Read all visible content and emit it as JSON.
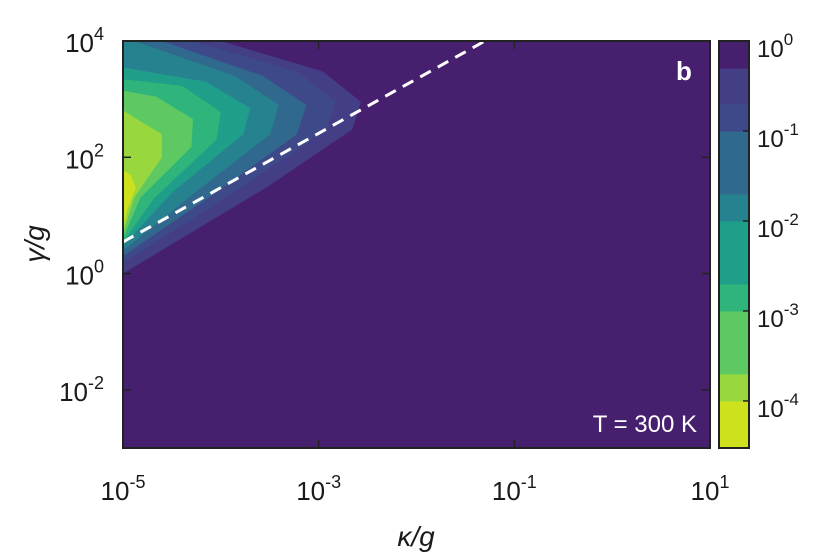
{
  "chart_data": {
    "type": "heatmap",
    "panel_label": "b",
    "annotation": "T = 300 K",
    "xlabel": "κ/g",
    "ylabel": "γ/g",
    "x_scale": "log",
    "y_scale": "log",
    "xlim": [
      1e-05,
      10
    ],
    "ylim": [
      0.001,
      10000
    ],
    "x_ticks": [
      {
        "base": "10",
        "exp": "-5",
        "value": 1e-05
      },
      {
        "base": "10",
        "exp": "-3",
        "value": 0.001
      },
      {
        "base": "10",
        "exp": "-1",
        "value": 0.1
      },
      {
        "base": "10",
        "exp": "1",
        "value": 10
      }
    ],
    "y_ticks": [
      {
        "base": "10",
        "exp": "4",
        "value": 10000
      },
      {
        "base": "10",
        "exp": "2",
        "value": 100
      },
      {
        "base": "10",
        "exp": "0",
        "value": 1
      },
      {
        "base": "10",
        "exp": "-2",
        "value": 0.01
      }
    ],
    "colorbar": {
      "scale": "log",
      "range": [
        3e-05,
        1
      ],
      "ticks": [
        {
          "base": "10",
          "exp": "0",
          "value": 1
        },
        {
          "base": "10",
          "exp": "-1",
          "value": 0.1
        },
        {
          "base": "10",
          "exp": "-2",
          "value": 0.01
        },
        {
          "base": "10",
          "exp": "-3",
          "value": 0.001
        },
        {
          "base": "10",
          "exp": "-4",
          "value": 0.0001
        }
      ],
      "levels": [
        {
          "color": "#cde11d",
          "lower": 3e-05
        },
        {
          "color": "#98d83e",
          "lower": 0.0001
        },
        {
          "color": "#5ec962",
          "lower": 0.0002
        },
        {
          "color": "#2fb47c",
          "lower": 0.001
        },
        {
          "color": "#1f9e89",
          "lower": 0.002
        },
        {
          "color": "#26828e",
          "lower": 0.01
        },
        {
          "color": "#31688e",
          "lower": 0.02
        },
        {
          "color": "#3e4989",
          "lower": 0.1
        },
        {
          "color": "#433e85",
          "lower": 0.2
        },
        {
          "color": "#471f6f",
          "lower": 0.5
        }
      ]
    },
    "contour_boundaries": [
      {
        "level_index": 8,
        "points": [
          [
            1e-05,
            1
          ],
          [
            0.00029,
            30
          ],
          [
            0.0022,
            300
          ],
          [
            0.0027,
            900
          ],
          [
            0.0011,
            3000
          ],
          [
            0.0001,
            10000
          ]
        ]
      },
      {
        "level_index": 7,
        "points": [
          [
            1e-05,
            1.5
          ],
          [
            0.00016,
            30
          ],
          [
            0.0012,
            300
          ],
          [
            0.0015,
            900
          ],
          [
            0.0006,
            3000
          ],
          [
            5e-05,
            10000
          ]
        ]
      },
      {
        "level_index": 6,
        "points": [
          [
            1e-05,
            2
          ],
          [
            9e-05,
            25
          ],
          [
            0.0006,
            250
          ],
          [
            0.00075,
            800
          ],
          [
            0.00027,
            2500
          ],
          [
            2.5e-05,
            10000
          ]
        ]
      },
      {
        "level_index": 5,
        "points": [
          [
            1e-05,
            2.5
          ],
          [
            5.5e-05,
            25
          ],
          [
            0.00032,
            250
          ],
          [
            0.00039,
            800
          ],
          [
            0.00014,
            2500
          ],
          [
            1.3e-05,
            10000
          ]
        ]
      },
      {
        "level_index": 4,
        "points": [
          [
            1e-05,
            3
          ],
          [
            3.2e-05,
            25
          ],
          [
            0.00017,
            250
          ],
          [
            0.0002,
            700
          ],
          [
            7e-05,
            2000
          ],
          [
            1e-05,
            3500
          ]
        ]
      },
      {
        "level_index": 3,
        "points": [
          [
            1e-05,
            3.5
          ],
          [
            2.1e-05,
            20
          ],
          [
            9e-05,
            200
          ],
          [
            0.0001,
            600
          ],
          [
            4e-05,
            1700
          ],
          [
            1e-05,
            2200
          ]
        ]
      },
      {
        "level_index": 2,
        "points": [
          [
            1e-05,
            4
          ],
          [
            1.5e-05,
            20
          ],
          [
            5e-05,
            150
          ],
          [
            5.2e-05,
            450
          ],
          [
            2.2e-05,
            1100
          ],
          [
            1e-05,
            1400
          ]
        ]
      },
      {
        "level_index": 1,
        "points": [
          [
            1e-05,
            5
          ],
          [
            1.3e-05,
            20
          ],
          [
            2.5e-05,
            100
          ],
          [
            2.5e-05,
            250
          ],
          [
            1.25e-05,
            500
          ],
          [
            1e-05,
            650
          ]
        ]
      },
      {
        "level_index": 0,
        "points": [
          [
            1e-05,
            6
          ],
          [
            1.1e-05,
            12
          ],
          [
            1.35e-05,
            30
          ],
          [
            1.2e-05,
            50
          ],
          [
            1e-05,
            60
          ]
        ]
      }
    ],
    "dashed_line": {
      "color": "#ffffff",
      "points": [
        [
          1e-05,
          3.5
        ],
        [
          0.05,
          10000
        ]
      ]
    },
    "background_color": "#471f6f"
  }
}
